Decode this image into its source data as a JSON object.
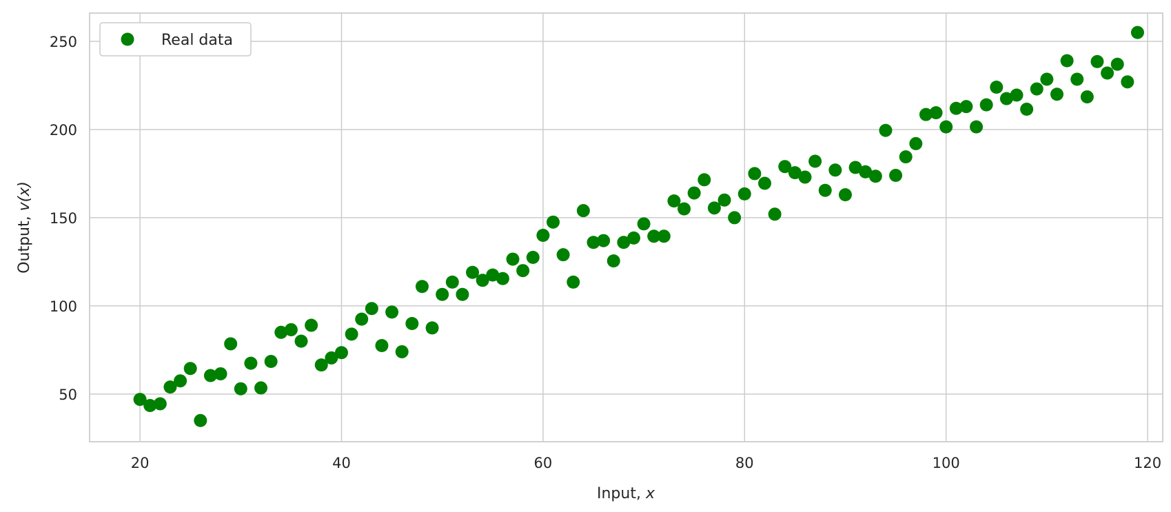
{
  "chart_data": {
    "type": "scatter",
    "xlabel_text": "Input, ",
    "xlabel_var": "x",
    "ylabel_text": "Output, ",
    "ylabel_var": "v(x)",
    "xlim": [
      15,
      121.5
    ],
    "ylim": [
      23,
      266
    ],
    "xticks": [
      20,
      40,
      60,
      80,
      100,
      120
    ],
    "yticks": [
      50,
      100,
      150,
      200,
      250
    ],
    "grid": true,
    "legend_position": "top-left",
    "series": [
      {
        "name": "Real data",
        "color": "#008000",
        "marker": "circle",
        "points": [
          [
            20,
            47
          ],
          [
            21,
            43.5
          ],
          [
            22,
            44.5
          ],
          [
            23,
            54
          ],
          [
            24,
            57.5
          ],
          [
            25,
            64.5
          ],
          [
            26,
            35
          ],
          [
            27,
            60.5
          ],
          [
            28,
            61.5
          ],
          [
            29,
            78.5
          ],
          [
            30,
            53
          ],
          [
            31,
            67.5
          ],
          [
            32,
            53.5
          ],
          [
            33,
            68.5
          ],
          [
            34,
            85
          ],
          [
            35,
            86.5
          ],
          [
            36,
            80
          ],
          [
            37,
            89
          ],
          [
            38,
            66.5
          ],
          [
            39,
            70.5
          ],
          [
            40,
            73.5
          ],
          [
            41,
            84
          ],
          [
            42,
            92.5
          ],
          [
            43,
            98.5
          ],
          [
            44,
            77.5
          ],
          [
            45,
            96.5
          ],
          [
            46,
            74
          ],
          [
            47,
            90
          ],
          [
            48,
            111
          ],
          [
            49,
            87.5
          ],
          [
            50,
            106.5
          ],
          [
            51,
            113.5
          ],
          [
            52,
            106.5
          ],
          [
            53,
            119
          ],
          [
            54,
            114.5
          ],
          [
            55,
            117.5
          ],
          [
            56,
            115.5
          ],
          [
            57,
            126.5
          ],
          [
            58,
            120
          ],
          [
            59,
            127.5
          ],
          [
            60,
            140
          ],
          [
            61,
            147.5
          ],
          [
            62,
            129
          ],
          [
            63,
            113.5
          ],
          [
            64,
            154
          ],
          [
            65,
            136
          ],
          [
            66,
            137
          ],
          [
            67,
            125.5
          ],
          [
            68,
            136
          ],
          [
            69,
            138.5
          ],
          [
            70,
            146.5
          ],
          [
            71,
            139.5
          ],
          [
            72,
            139.5
          ],
          [
            73,
            159.5
          ],
          [
            74,
            155
          ],
          [
            75,
            164
          ],
          [
            76,
            171.5
          ],
          [
            77,
            155.5
          ],
          [
            78,
            160
          ],
          [
            79,
            150
          ],
          [
            80,
            163.5
          ],
          [
            81,
            175
          ],
          [
            82,
            169.5
          ],
          [
            83,
            152
          ],
          [
            84,
            179
          ],
          [
            85,
            175.5
          ],
          [
            86,
            173
          ],
          [
            87,
            182
          ],
          [
            88,
            165.5
          ],
          [
            89,
            177
          ],
          [
            90,
            163
          ],
          [
            91,
            178.5
          ],
          [
            92,
            176
          ],
          [
            93,
            173.5
          ],
          [
            94,
            199.5
          ],
          [
            95,
            174
          ],
          [
            96,
            184.5
          ],
          [
            97,
            192
          ],
          [
            98,
            208.5
          ],
          [
            99,
            209.5
          ],
          [
            100,
            201.5
          ],
          [
            101,
            212
          ],
          [
            102,
            213
          ],
          [
            103,
            201.5
          ],
          [
            104,
            214
          ],
          [
            105,
            224
          ],
          [
            106,
            217.5
          ],
          [
            107,
            219.5
          ],
          [
            108,
            211.5
          ],
          [
            109,
            223
          ],
          [
            110,
            228.5
          ],
          [
            111,
            220
          ],
          [
            112,
            239
          ],
          [
            113,
            228.5
          ],
          [
            114,
            218.5
          ],
          [
            115,
            238.5
          ],
          [
            116,
            232
          ],
          [
            117,
            237
          ],
          [
            118,
            227
          ],
          [
            119,
            255
          ]
        ]
      }
    ]
  }
}
